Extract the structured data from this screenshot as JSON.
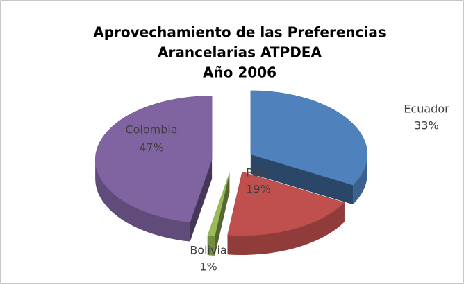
{
  "chart_data": {
    "type": "pie",
    "title": [
      "Aprovechamiento de las Preferencias",
      "Arancelarias ATPDEA",
      "Año 2006"
    ],
    "categories": [
      "Ecuador",
      "Perú",
      "Bolivia",
      "Colombia"
    ],
    "values": [
      33,
      19,
      1,
      47
    ],
    "value_labels": [
      "33%",
      "19%",
      "1%",
      "47%"
    ],
    "colors": [
      "#4f81bd",
      "#c0504d",
      "#9bbb59",
      "#8064a2"
    ]
  }
}
